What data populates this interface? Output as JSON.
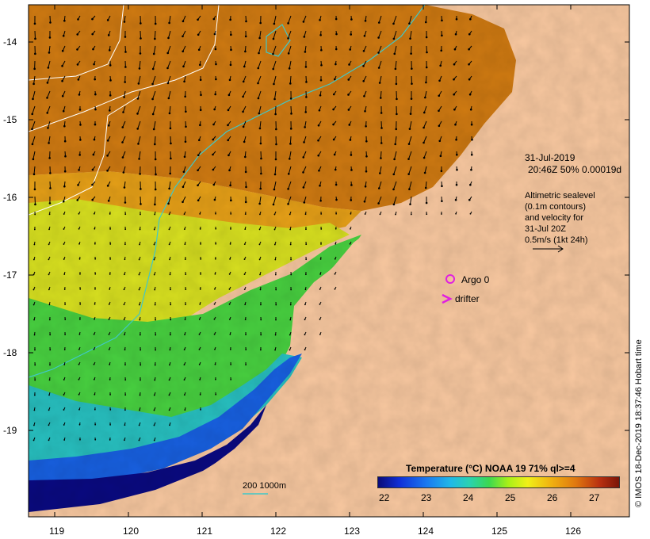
{
  "map": {
    "y_ticks": [
      "-14",
      "-15",
      "-16",
      "-17",
      "-18",
      "-19"
    ],
    "x_ticks": [
      "119",
      "120",
      "121",
      "122",
      "123",
      "124",
      "125",
      "126"
    ]
  },
  "info": {
    "date": "31-Jul-2019",
    "time_line": "20:46Z  50% 0.00019d",
    "altimetry_lines": [
      "Altimetric sealevel",
      "(0.1m contours)",
      "and velocity for",
      "31-Jul 20Z",
      "0.5m/s (1kt 24h)"
    ]
  },
  "legend": {
    "argo_label": "Argo 0",
    "drifter_label": "drifter",
    "depth_contours_label": "200  1000m"
  },
  "colorbar": {
    "title": "Temperature (°C) NOAA 19 71% ql>=4",
    "ticks": [
      "22",
      "23",
      "24",
      "25",
      "26",
      "27"
    ]
  },
  "credit": "© IMOS 18-Dec-2019 18:37:46 Hobart time",
  "colors": {
    "land": "#f8c8a0",
    "argo_marker": "#e020e0",
    "drifter_marker": "#e020e0",
    "bathymetry_contour": "#40c8c8",
    "sealevel_contour": "#ffffff"
  }
}
